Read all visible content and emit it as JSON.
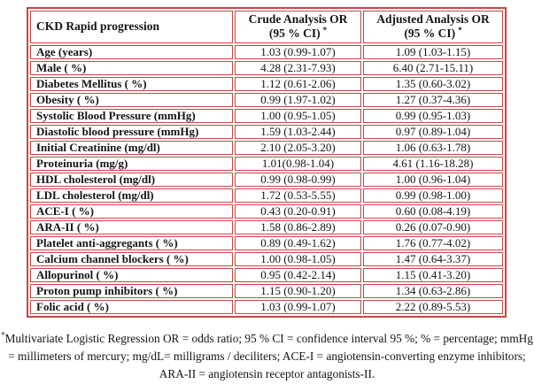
{
  "theme": {
    "border_red": "#bf4a46",
    "text_color": "#141414",
    "background": "#ffffff"
  },
  "table": {
    "title_cell": "CKD Rapid progression",
    "columns": [
      {
        "line1": "Crude Analysis OR",
        "line2": "(95 % CI)",
        "superscript": "*"
      },
      {
        "line1": "Adjusted Analysis OR",
        "line2": "(95 % CI)",
        "superscript": "*"
      }
    ],
    "rows": [
      {
        "label": "Age (years)",
        "crude": "1.03 (0.99-1.07)",
        "adjusted": "1.09 (1.03-1.15)"
      },
      {
        "label": "Male ( %)",
        "crude": "4.28 (2.31-7.93)",
        "adjusted": "6.40 (2.71-15.11)"
      },
      {
        "label": "Diabetes Mellitus ( %)",
        "crude": "1.12 (0.61-2.06)",
        "adjusted": "1.35 (0.60-3.02)"
      },
      {
        "label": "Obesity ( %)",
        "crude": "0.99 (1.97-1.02)",
        "adjusted": "1.27 (0.37-4.36)"
      },
      {
        "label": "Systolic Blood Pressure (mmHg)",
        "crude": "1.00 (0.95-1.05)",
        "adjusted": "0.99 (0.95-1.03)"
      },
      {
        "label": "Diastolic blood pressure (mmHg)",
        "crude": "1.59 (1.03-2.44)",
        "adjusted": "0.97 (0.89-1.04)"
      },
      {
        "label": "Initial Creatinine (mg/dl)",
        "crude": "2.10 (2.05-3.20)",
        "adjusted": "1.06 (0.63-1.78)"
      },
      {
        "label": "Proteinuria (mg/g)",
        "crude": "1.01(0.98-1.04)",
        "adjusted": "4.61 (1.16-18.28)"
      },
      {
        "label": "HDL cholesterol (mg/dl)",
        "crude": "0.99 (0.98-0.99)",
        "adjusted": "1.00 (0.96-1.04)"
      },
      {
        "label": "LDL cholesterol (mg/dl)",
        "crude": "1.72 (0.53-5.55)",
        "adjusted": "0.99 (0.98-1.00)"
      },
      {
        "label": "ACE-I ( %)",
        "crude": "0.43 (0.20-0.91)",
        "adjusted": "0.60 (0.08-4.19)"
      },
      {
        "label": "ARA-II ( %)",
        "crude": "1.58 (0.86-2.89)",
        "adjusted": "0.26 (0.07-0.90)"
      },
      {
        "label": "Platelet anti-aggregants ( %)",
        "crude": "0.89 (0.49-1.62)",
        "adjusted": "1.76 (0.77-4.02)"
      },
      {
        "label": "Calcium channel blockers ( %)",
        "crude": "1.00 (0.98-1.05)",
        "adjusted": "1.47 (0.64-3.37)"
      },
      {
        "label": "Allopurinol ( %)",
        "crude": "0.95 (0.42-2.14)",
        "adjusted": "1.15 (0.41-3.20)"
      },
      {
        "label": "Proton pump inhibitors ( %)",
        "crude": "1.15 (0.90-1.20)",
        "adjusted": "1.34 (0.63-2.86)"
      },
      {
        "label": "Folic acid ( %)",
        "crude": "1.03 (0.99-1.07)",
        "adjusted": "2.22 (0.89-5.53)"
      }
    ]
  },
  "footnote": {
    "superscript": "*",
    "text": "Multivariate Logistic Regression OR = odds ratio; 95 % CI = confidence interval 95 %; % = percentage; mmHg = millimeters of mercury; mg/dL= milligrams / deciliters; ACE-I = angiotensin-converting enzyme inhibitors; ARA-II = angiotensin receptor antagonists-II."
  }
}
